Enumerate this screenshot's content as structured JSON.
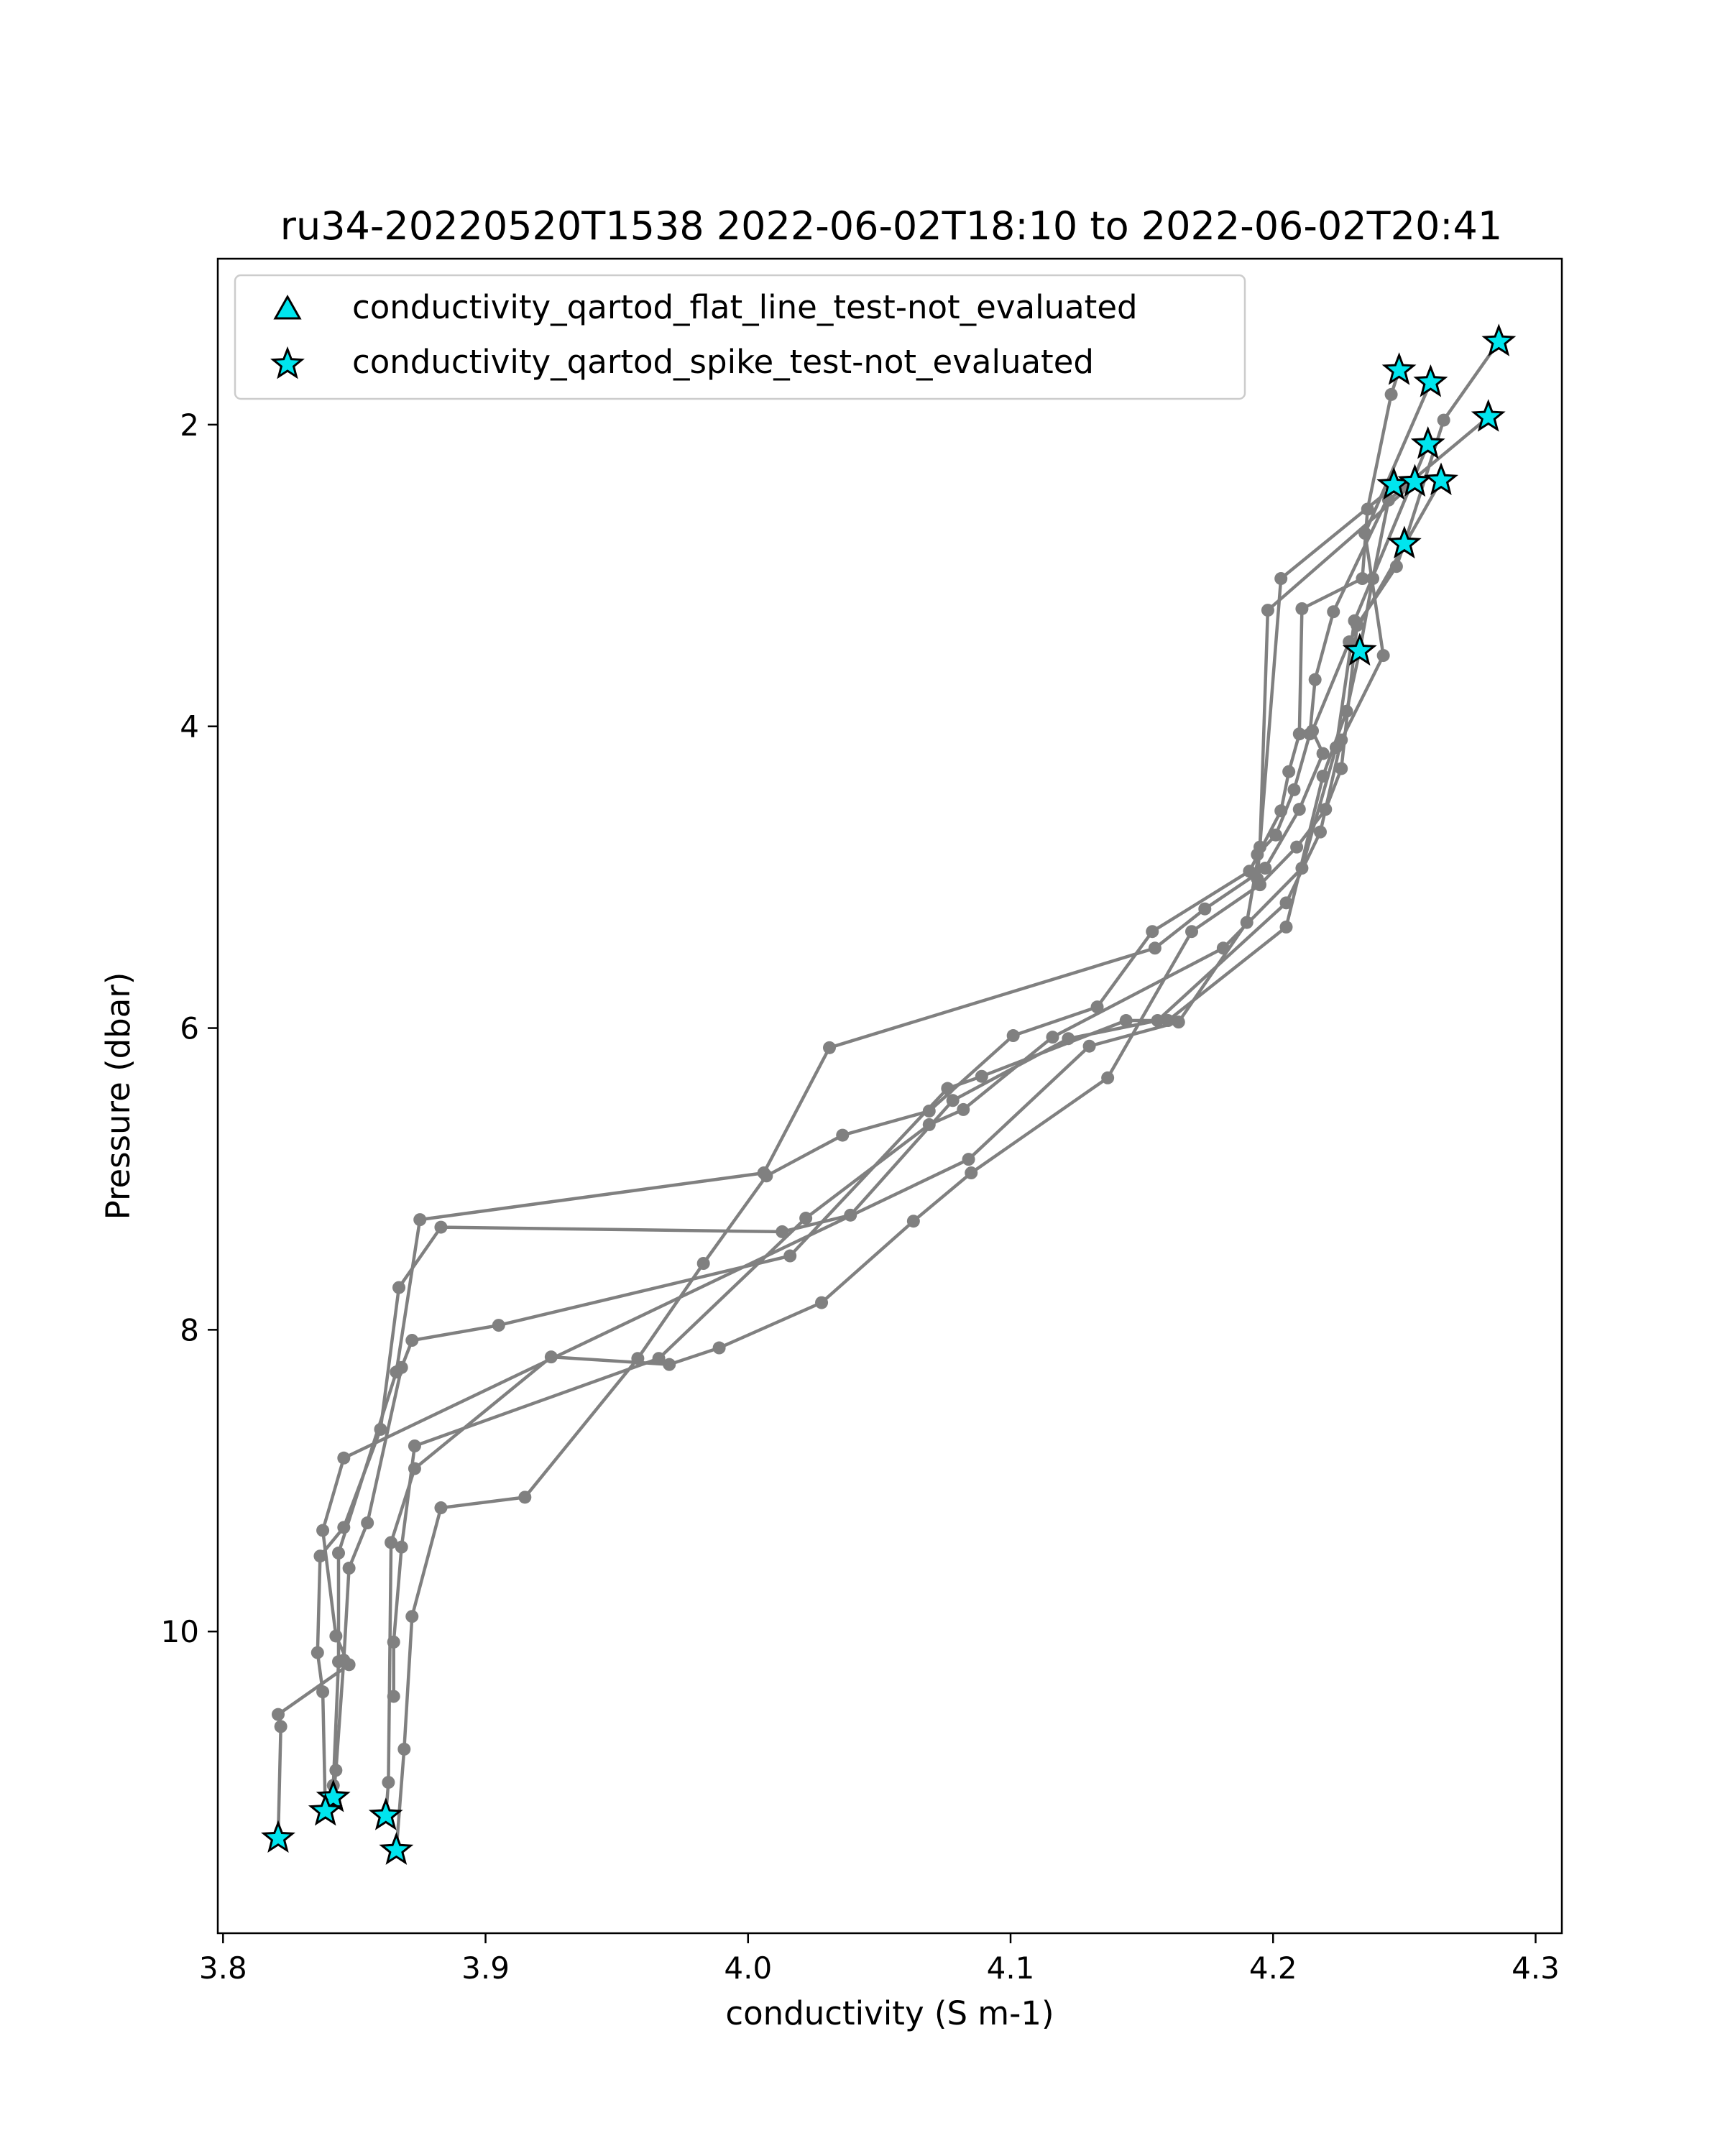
{
  "chart_data": {
    "type": "scatter",
    "title": "ru34-20220520T1538 2022-06-02T18:10 to 2022-06-02T20:41",
    "xlabel": "conductivity (S m-1)",
    "ylabel": "Pressure (dbar)",
    "xlim": [
      3.798,
      4.31
    ],
    "ylim": [
      12.0,
      0.9
    ],
    "y_inverted": true,
    "xticks": [
      3.8,
      3.9,
      4.0,
      4.1,
      4.2,
      4.3
    ],
    "xtick_labels": [
      "3.8",
      "3.9",
      "4.0",
      "4.1",
      "4.2",
      "4.3"
    ],
    "yticks": [
      2,
      4,
      6,
      8,
      10
    ],
    "ytick_labels": [
      "2",
      "4",
      "6",
      "8",
      "10"
    ],
    "grid": false,
    "legend_position": "top-left",
    "profile_color": "#808080",
    "flag_color": "#00e5ee",
    "legend": [
      {
        "label": "conductivity_qartod_flat_line_test-not_evaluated",
        "marker": "triangle"
      },
      {
        "label": "conductivity_qartod_spike_test-not_evaluated",
        "marker": "star"
      }
    ],
    "series": [
      {
        "points": [
          [
            4.248,
            1.64
          ],
          [
            4.245,
            1.8
          ],
          [
            4.236,
            2.56
          ],
          [
            4.234,
            3.02
          ],
          [
            4.211,
            3.22
          ],
          [
            4.21,
            4.05
          ],
          [
            4.206,
            4.3
          ],
          [
            4.203,
            4.56
          ],
          [
            4.191,
            4.96
          ],
          [
            4.154,
            5.36
          ],
          [
            4.133,
            5.86
          ],
          [
            4.101,
            6.05
          ],
          [
            4.069,
            6.55
          ],
          [
            4.036,
            6.71
          ],
          [
            4.007,
            6.98
          ],
          [
            3.983,
            7.56
          ],
          [
            3.958,
            8.19
          ],
          [
            3.915,
            9.11
          ],
          [
            3.883,
            9.18
          ],
          [
            3.872,
            9.9
          ],
          [
            3.869,
            10.78
          ],
          [
            3.866,
            11.45
          ]
        ]
      },
      {
        "points": [
          [
            4.286,
            1.45
          ],
          [
            4.265,
            1.97
          ],
          [
            4.25,
            2.79
          ],
          [
            4.247,
            2.94
          ],
          [
            4.232,
            3.33
          ],
          [
            4.226,
            4.28
          ],
          [
            4.22,
            4.55
          ],
          [
            4.209,
            4.8
          ],
          [
            4.195,
            5.05
          ],
          [
            4.169,
            5.36
          ],
          [
            4.137,
            6.33
          ],
          [
            4.085,
            6.96
          ],
          [
            4.063,
            7.28
          ],
          [
            4.028,
            7.82
          ],
          [
            3.989,
            8.12
          ],
          [
            3.97,
            8.23
          ],
          [
            3.925,
            8.18
          ],
          [
            3.873,
            8.92
          ],
          [
            3.864,
            9.41
          ],
          [
            3.863,
            11.0
          ],
          [
            3.862,
            11.22
          ]
        ]
      },
      {
        "points": [
          [
            4.26,
            1.72
          ],
          [
            4.235,
            2.72
          ],
          [
            4.242,
            3.53
          ],
          [
            4.226,
            4.09
          ],
          [
            4.218,
            4.7
          ],
          [
            4.205,
            5.17
          ],
          [
            4.156,
            5.95
          ],
          [
            4.122,
            6.07
          ],
          [
            4.078,
            6.48
          ],
          [
            4.039,
            7.24
          ],
          [
            4.013,
            7.35
          ],
          [
            3.883,
            7.32
          ],
          [
            3.867,
            7.72
          ],
          [
            3.86,
            8.66
          ],
          [
            3.846,
            9.31
          ],
          [
            3.837,
            9.5
          ],
          [
            3.836,
            10.14
          ],
          [
            3.838,
            10.4
          ],
          [
            3.839,
            11.19
          ]
        ]
      },
      {
        "points": [
          [
            4.282,
            1.95
          ],
          [
            4.244,
            2.5
          ],
          [
            4.238,
            3.02
          ],
          [
            4.233,
            3.5
          ],
          [
            4.228,
            3.9
          ],
          [
            4.219,
            4.33
          ],
          [
            4.205,
            5.33
          ],
          [
            4.16,
            5.95
          ],
          [
            4.144,
            5.95
          ],
          [
            4.089,
            6.32
          ],
          [
            4.076,
            6.4
          ],
          [
            4.016,
            7.51
          ],
          [
            3.905,
            7.97
          ],
          [
            3.872,
            8.07
          ],
          [
            3.868,
            8.25
          ],
          [
            3.855,
            9.28
          ],
          [
            3.848,
            9.58
          ],
          [
            3.846,
            10.19
          ],
          [
            3.843,
            10.92
          ],
          [
            3.842,
            11.1
          ]
        ]
      },
      {
        "points": [
          [
            4.259,
            2.13
          ],
          [
            4.231,
            3.3
          ],
          [
            4.224,
            4.14
          ],
          [
            4.211,
            4.94
          ],
          [
            4.181,
            5.47
          ],
          [
            4.116,
            6.06
          ],
          [
            4.082,
            6.54
          ],
          [
            4.069,
            6.64
          ],
          [
            4.022,
            7.26
          ],
          [
            3.966,
            8.19
          ],
          [
            3.873,
            8.77
          ],
          [
            3.868,
            9.44
          ],
          [
            3.865,
            10.07
          ],
          [
            3.865,
            10.43
          ]
        ]
      },
      {
        "points": [
          [
            4.246,
            2.4
          ],
          [
            4.223,
            3.24
          ],
          [
            4.216,
            3.69
          ],
          [
            4.214,
            4.05
          ],
          [
            4.208,
            4.42
          ],
          [
            4.201,
            4.72
          ],
          [
            4.194,
            4.85
          ],
          [
            4.194,
            5.01
          ],
          [
            4.203,
            3.02
          ],
          [
            4.246,
            2.41
          ]
        ]
      },
      {
        "points": [
          [
            4.254,
            2.38
          ],
          [
            4.198,
            3.23
          ],
          [
            4.195,
            4.8
          ],
          [
            4.19,
            5.3
          ],
          [
            4.164,
            5.96
          ],
          [
            4.13,
            6.12
          ],
          [
            4.084,
            6.87
          ],
          [
            3.846,
            8.85
          ],
          [
            3.838,
            9.33
          ],
          [
            3.843,
            10.03
          ],
          [
            3.848,
            10.22
          ],
          [
            3.821,
            10.55
          ],
          [
            3.822,
            10.63
          ],
          [
            3.821,
            11.37
          ]
        ]
      },
      {
        "points": [
          [
            4.264,
            2.37
          ],
          [
            4.25,
            2.8
          ],
          [
            4.229,
            3.44
          ],
          [
            4.215,
            4.03
          ],
          [
            4.219,
            4.18
          ],
          [
            4.21,
            4.55
          ],
          [
            4.197,
            4.94
          ],
          [
            4.174,
            5.21
          ],
          [
            4.155,
            5.47
          ],
          [
            4.031,
            6.13
          ],
          [
            4.006,
            6.96
          ],
          [
            3.875,
            7.27
          ],
          [
            3.866,
            8.28
          ],
          [
            3.844,
            9.48
          ],
          [
            3.844,
            10.2
          ],
          [
            3.842,
            11.02
          ]
        ]
      }
    ],
    "flat_line_flags": [],
    "spike_flags": [
      [
        4.248,
        1.64
      ],
      [
        4.286,
        1.45
      ],
      [
        4.26,
        1.72
      ],
      [
        4.282,
        1.95
      ],
      [
        4.259,
        2.13
      ],
      [
        4.246,
        2.4
      ],
      [
        4.254,
        2.38
      ],
      [
        4.264,
        2.37
      ],
      [
        4.25,
        2.79
      ],
      [
        4.233,
        3.5
      ],
      [
        3.842,
        11.1
      ],
      [
        3.862,
        11.22
      ],
      [
        3.839,
        11.19
      ],
      [
        3.821,
        11.37
      ],
      [
        3.866,
        11.45
      ]
    ]
  }
}
